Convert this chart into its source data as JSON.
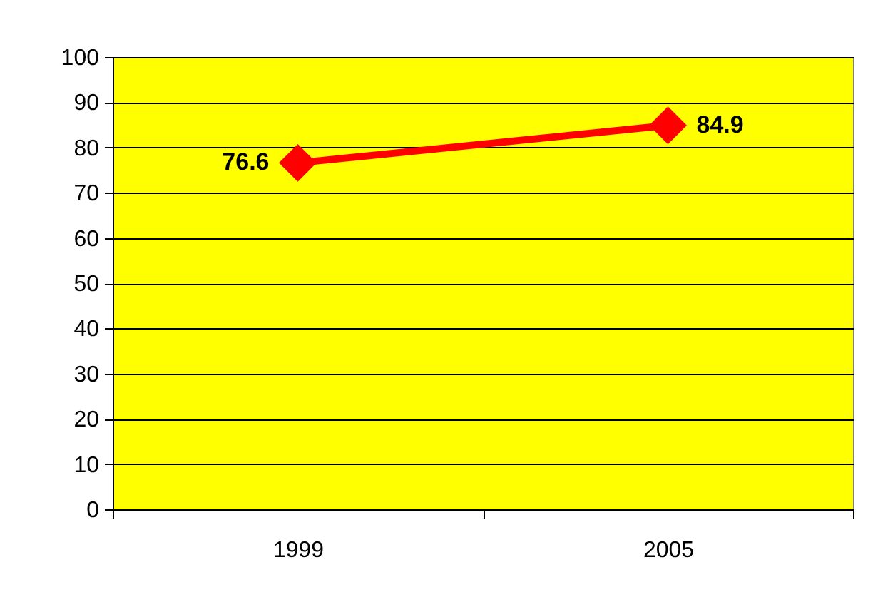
{
  "chart_data": {
    "type": "line",
    "categories": [
      "1999",
      "2005"
    ],
    "series": [
      {
        "color": "#ff0000",
        "values": [
          76.6,
          84.9
        ]
      }
    ],
    "ylim": [
      0,
      100
    ],
    "yticks": [
      0,
      10,
      20,
      30,
      40,
      50,
      60,
      70,
      80,
      90,
      100
    ],
    "grid": "y",
    "marker": "diamond",
    "line_style": "solid",
    "data_labels": true
  }
}
